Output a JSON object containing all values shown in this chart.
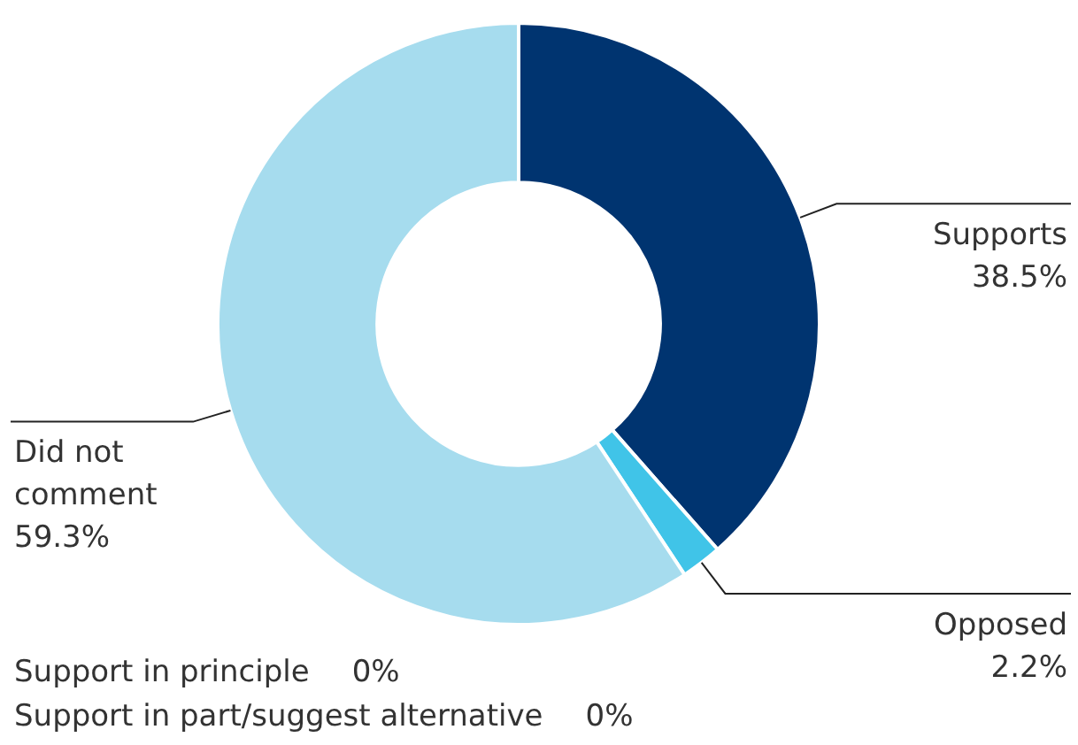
{
  "chart_data": {
    "type": "donut",
    "categories": [
      "Supports",
      "Opposed",
      "Did not comment",
      "Support in principle",
      "Support in part/suggest alternative"
    ],
    "values": [
      38.5,
      2.2,
      59.3,
      0,
      0
    ],
    "colors": [
      "#003470",
      "#40c4e8",
      "#a6dcee",
      "#7fb0d8",
      "#2a7ab8"
    ],
    "value_labels": [
      "38.5%",
      "2.2%",
      "59.3%",
      "0%",
      "0%"
    ],
    "legend": false
  }
}
